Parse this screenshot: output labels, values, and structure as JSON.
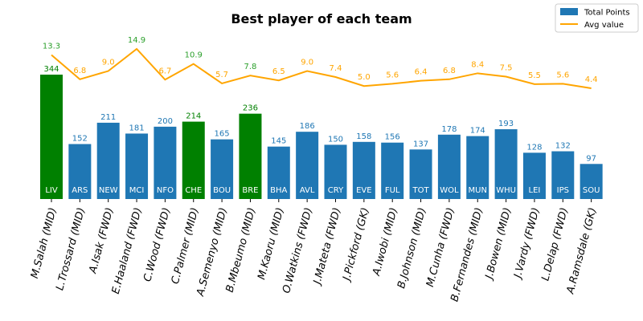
{
  "chart_data": {
    "type": "bar",
    "title": "Best player of each team",
    "xlabel": "",
    "ylabel": "",
    "categories": [
      "M.Salah (MID)",
      "L.Trossard (MID)",
      "A.Isak (FWD)",
      "E.Haaland (FWD)",
      "C.Wood (FWD)",
      "C.Palmer (MID)",
      "A.Semenyo (MID)",
      "B.Mbeumo (MID)",
      "M.Kaoru (MID)",
      "O.Watkins (FWD)",
      "J.Mateta (FWD)",
      "J.Pickford (GK)",
      "A.Iwobi (MID)",
      "B.Johnson (MID)",
      "M.Cunha (FWD)",
      "B.Fernandes (MID)",
      "J.Bowen (MID)",
      "J.Vardy (FWD)",
      "L.Delap (FWD)",
      "A.Ramsdale (GK)"
    ],
    "teams": [
      "LIV",
      "ARS",
      "NEW",
      "MCI",
      "NFO",
      "CHE",
      "BOU",
      "BRE",
      "BHA",
      "AVL",
      "CRY",
      "EVE",
      "FUL",
      "TOT",
      "WOL",
      "MUN",
      "WHU",
      "LEI",
      "IPS",
      "SOU"
    ],
    "series": [
      {
        "name": "Total Points",
        "type": "bar",
        "color": "#1f77b4",
        "highlight_color": "#008000",
        "highlight_indices": [
          0,
          5,
          7
        ],
        "values": [
          344,
          152,
          211,
          181,
          200,
          214,
          165,
          236,
          145,
          186,
          150,
          158,
          156,
          137,
          178,
          174,
          193,
          128,
          132,
          97
        ]
      },
      {
        "name": "Avg value",
        "type": "line",
        "color": "#ffa500",
        "highlight_color": "#2ca02c",
        "values": [
          13.3,
          6.8,
          9.0,
          14.9,
          6.7,
          10.9,
          5.7,
          7.8,
          6.5,
          9.0,
          7.4,
          5.0,
          5.6,
          6.4,
          6.8,
          8.4,
          7.5,
          5.5,
          5.6,
          4.4
        ]
      }
    ],
    "legend": {
      "position": "top-right",
      "entries": [
        "Total Points",
        "Avg value"
      ]
    },
    "grid": false
  }
}
